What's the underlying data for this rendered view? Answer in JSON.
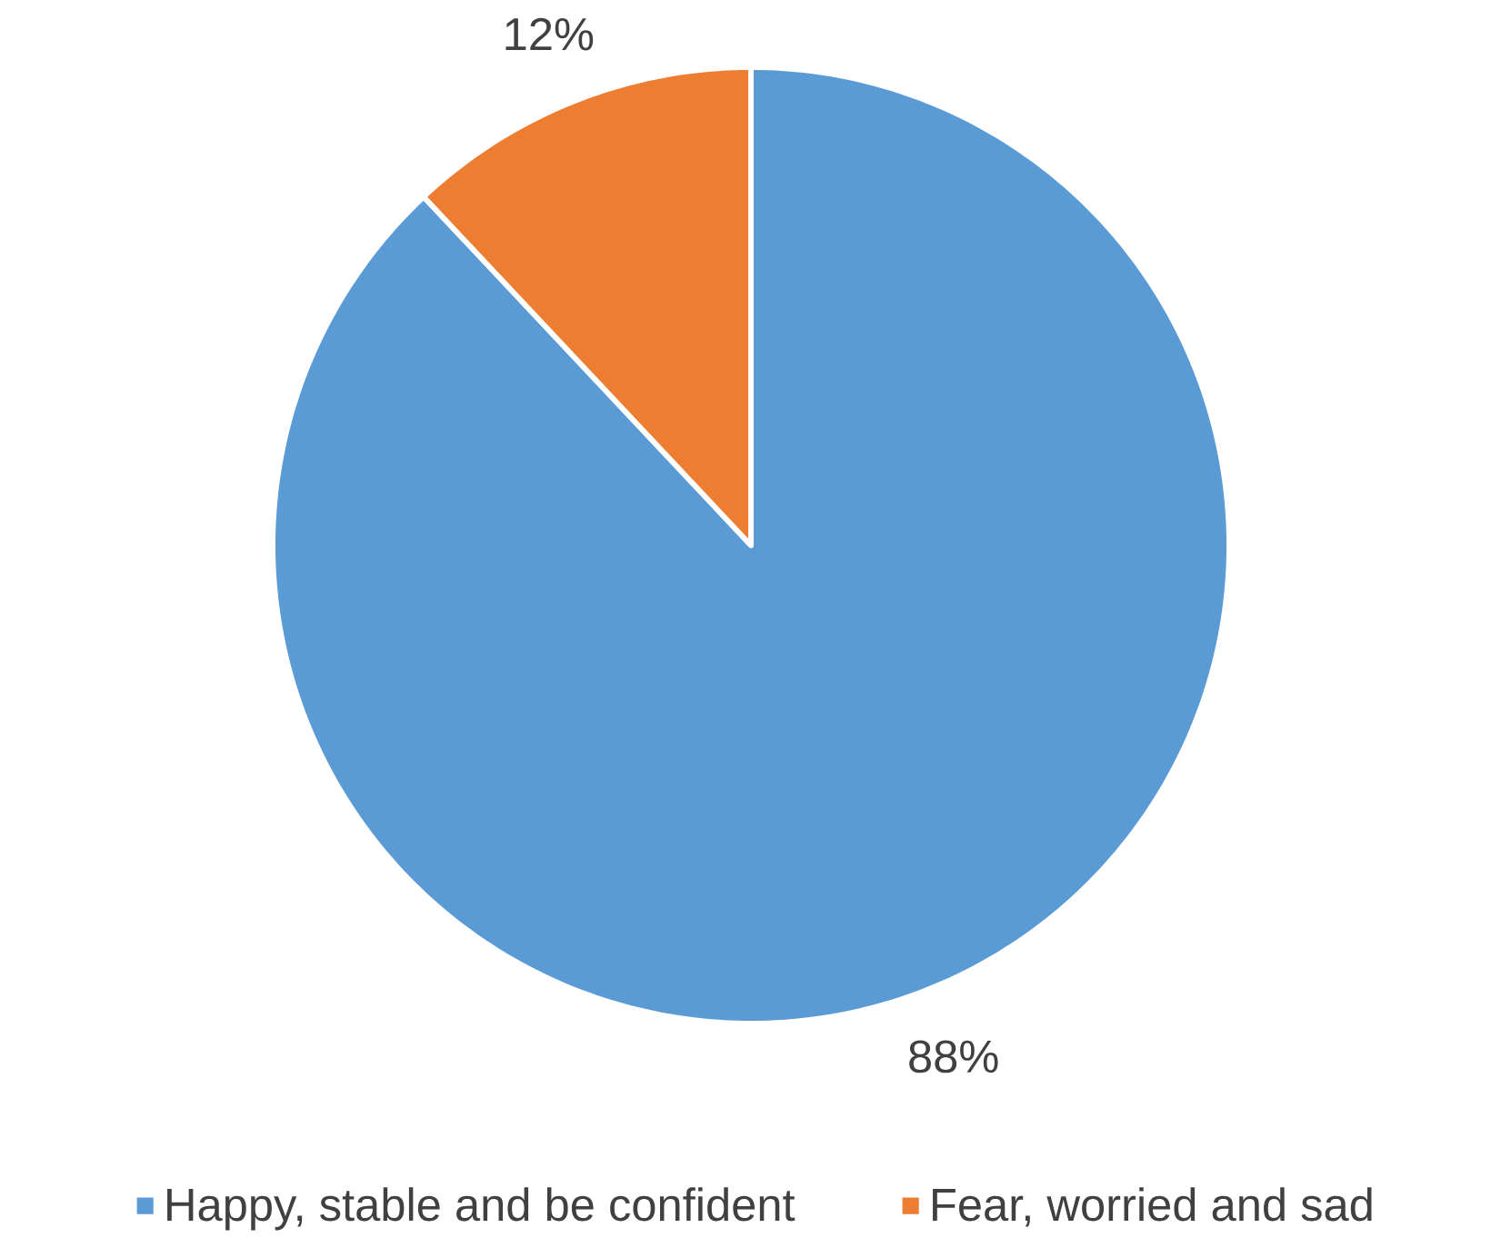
{
  "chart_data": {
    "type": "pie",
    "categories": [
      "Happy, stable and be confident",
      "Fear, worried and sad"
    ],
    "values": [
      88,
      12
    ],
    "colors": [
      "#5b9bd5",
      "#ed7d31"
    ],
    "value_labels": [
      "88%",
      "12%"
    ],
    "legend": "bottom"
  }
}
